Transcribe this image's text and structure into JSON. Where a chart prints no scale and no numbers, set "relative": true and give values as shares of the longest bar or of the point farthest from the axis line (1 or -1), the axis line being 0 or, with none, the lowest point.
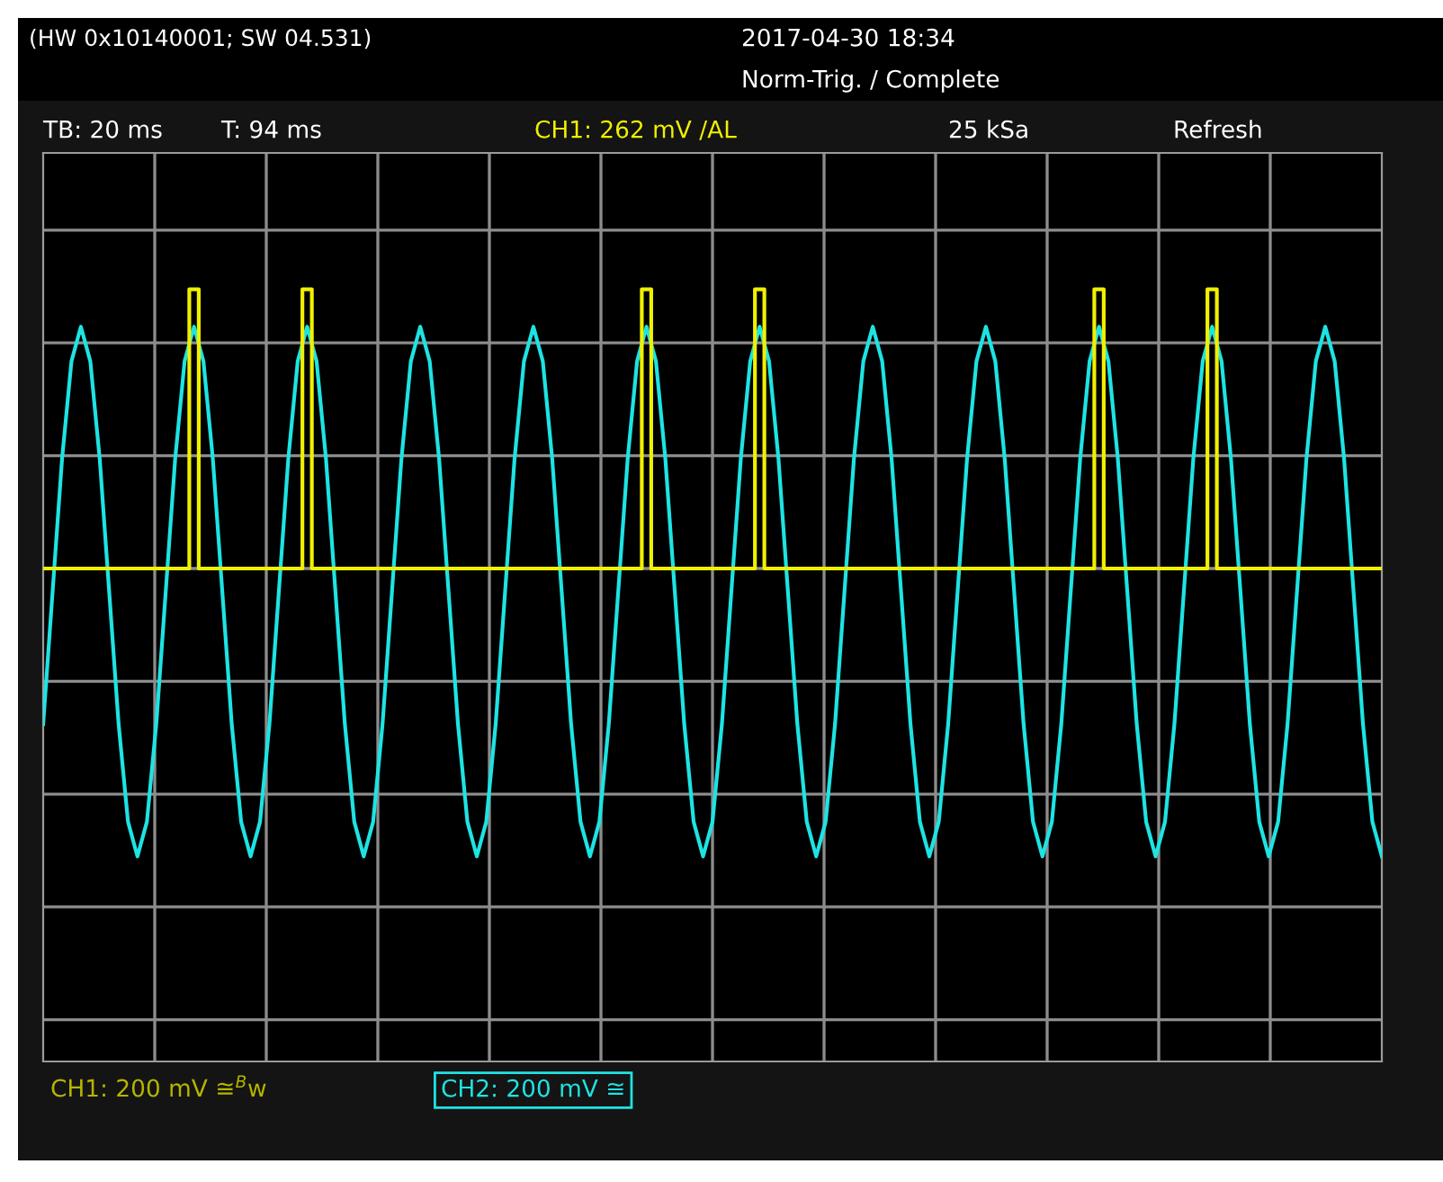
{
  "chart_data": {
    "type": "line",
    "title": "(HW 0x10140001; SW 04.531)",
    "annotations": [
      "2017-04-30 18:34",
      "Norm-Trig. / Complete",
      "TB: 20 ms",
      "T: 94 ms",
      "CH1: 262 mV /AL",
      "25 kSa",
      "Refresh",
      "CH1: 200 mV ≅$^{B}$w",
      "CH2: 200 mV ≅"
    ],
    "relative": true,
    "grid": true,
    "categories": [
      null,
      null,
      null,
      null,
      null,
      null,
      null,
      null,
      null,
      null,
      null,
      null,
      null,
      null,
      null,
      null,
      null,
      null,
      null,
      null,
      null,
      null,
      null,
      null,
      null,
      null,
      null,
      null,
      null,
      null,
      null,
      null,
      null,
      null,
      null,
      null,
      null,
      null,
      null,
      null,
      null,
      null,
      null,
      null,
      null,
      null,
      null,
      null,
      null,
      null,
      null,
      null,
      null,
      null,
      null,
      null,
      null,
      null,
      null,
      null,
      null,
      null,
      null,
      null,
      null,
      null,
      null,
      null,
      null,
      null,
      null,
      null,
      null,
      null,
      null,
      null,
      null,
      null,
      null,
      null,
      null,
      null,
      null,
      null,
      null,
      null,
      null,
      null,
      null,
      null,
      null,
      null,
      null,
      null,
      null,
      null,
      null,
      null,
      null,
      null,
      null,
      null,
      null,
      null,
      null,
      null,
      null,
      null,
      null,
      null,
      null,
      null,
      null,
      null,
      null,
      null,
      null,
      null,
      null,
      null,
      null,
      null,
      null,
      null,
      null,
      null,
      null,
      null,
      null,
      null,
      null,
      null,
      null,
      null,
      null,
      null,
      null,
      null,
      null,
      null,
      null,
      null,
      null
    ],
    "series": [
      {
        "type": "step",
        "color": "#f0f000",
        "values": [
          0,
          0,
          0,
          0,
          0,
          0,
          0,
          0,
          0,
          0,
          0,
          0,
          0,
          0,
          0,
          0,
          0.97,
          0,
          0,
          0,
          0,
          0,
          0,
          0,
          0,
          0,
          0,
          0,
          0.97,
          0,
          0,
          0,
          0,
          0,
          0,
          0,
          0,
          0,
          0,
          0,
          0,
          0,
          0,
          0,
          0,
          0,
          0,
          0,
          0,
          0,
          0,
          0,
          0,
          0,
          0,
          0,
          0,
          0,
          0,
          0,
          0,
          0,
          0,
          0,
          0.97,
          0,
          0,
          0,
          0,
          0,
          0,
          0,
          0,
          0,
          0,
          0,
          0.97,
          0,
          0,
          0,
          0,
          0,
          0,
          0,
          0,
          0,
          0,
          0,
          0,
          0,
          0,
          0,
          0,
          0,
          0,
          0,
          0,
          0,
          0,
          0,
          0,
          0,
          0,
          0,
          0,
          0,
          0,
          0,
          0,
          0,
          0,
          0,
          0.97,
          0,
          0,
          0,
          0,
          0,
          0,
          0,
          0,
          0,
          0,
          0,
          0.97,
          0,
          0,
          0,
          0,
          0,
          0,
          0,
          0,
          0,
          0,
          0,
          0,
          0,
          0,
          0,
          0,
          0,
          0
        ]
      },
      {
        "color": "#1ee3e3",
        "values": [
          -0.54,
          -0.08,
          0.38,
          0.72,
          0.84,
          0.72,
          0.38,
          -0.08,
          -0.54,
          -0.88,
          -1.0,
          -0.88,
          -0.54,
          -0.08,
          0.38,
          0.72,
          0.84,
          0.72,
          0.38,
          -0.08,
          -0.54,
          -0.88,
          -1.0,
          -0.88,
          -0.54,
          -0.08,
          0.38,
          0.72,
          0.84,
          0.72,
          0.38,
          -0.08,
          -0.54,
          -0.88,
          -1.0,
          -0.88,
          -0.54,
          -0.08,
          0.38,
          0.72,
          0.84,
          0.72,
          0.38,
          -0.08,
          -0.54,
          -0.88,
          -1.0,
          -0.88,
          -0.54,
          -0.08,
          0.38,
          0.72,
          0.84,
          0.72,
          0.38,
          -0.08,
          -0.54,
          -0.88,
          -1.0,
          -0.88,
          -0.54,
          -0.08,
          0.38,
          0.72,
          0.84,
          0.72,
          0.38,
          -0.08,
          -0.54,
          -0.88,
          -1.0,
          -0.88,
          -0.54,
          -0.08,
          0.38,
          0.72,
          0.84,
          0.72,
          0.38,
          -0.08,
          -0.54,
          -0.88,
          -1.0,
          -0.88,
          -0.54,
          -0.08,
          0.38,
          0.72,
          0.84,
          0.72,
          0.38,
          -0.08,
          -0.54,
          -0.88,
          -1.0,
          -0.88,
          -0.54,
          -0.08,
          0.38,
          0.72,
          0.84,
          0.72,
          0.38,
          -0.08,
          -0.54,
          -0.88,
          -1.0,
          -0.88,
          -0.54,
          -0.08,
          0.38,
          0.72,
          0.84,
          0.72,
          0.38,
          -0.08,
          -0.54,
          -0.88,
          -1.0,
          -0.88,
          -0.54,
          -0.08,
          0.38,
          0.72,
          0.84,
          0.72,
          0.38,
          -0.08,
          -0.54,
          -0.88,
          -1.0,
          -0.88,
          -0.54,
          -0.08,
          0.38,
          0.72,
          0.84,
          0.72,
          0.38,
          -0.08,
          -0.54,
          -0.88,
          -1.0
        ]
      }
    ]
  }
}
